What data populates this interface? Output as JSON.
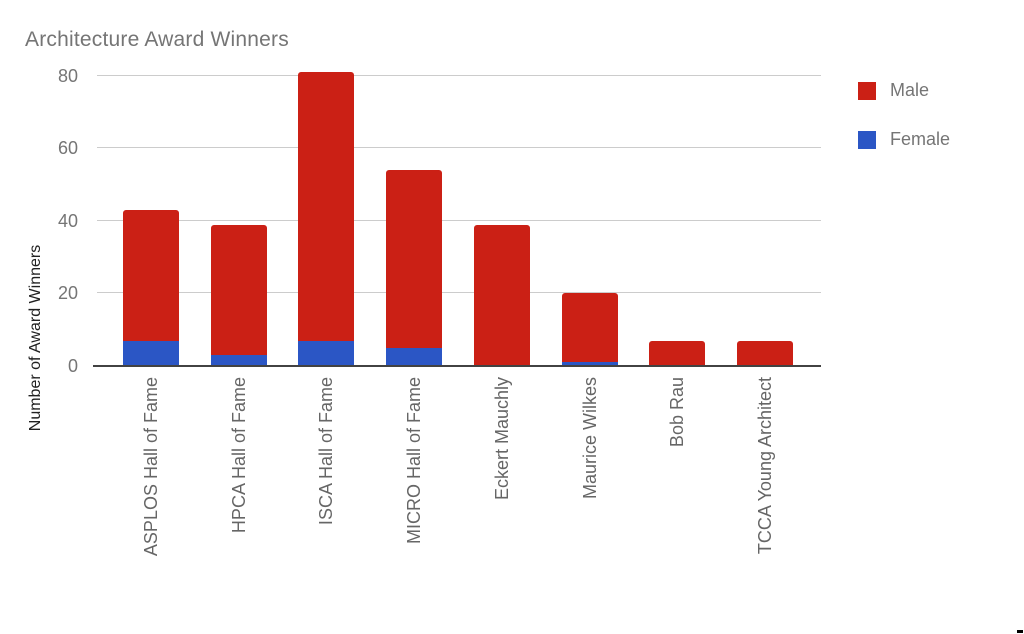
{
  "title": "Architecture Award Winners",
  "y_axis_title": "Number of Award Winners",
  "chart_data": {
    "type": "bar",
    "stacked": true,
    "title": "Architecture Award Winners",
    "xlabel": "",
    "ylabel": "Number of Award Winners",
    "categories": [
      "ASPLOS Hall of Fame",
      "HPCA Hall of Fame",
      "ISCA Hall of Fame",
      "MICRO Hall of Fame",
      "Eckert Mauchly",
      "Maurice Wilkes",
      "Bob Rau",
      "TCCA Young Architect"
    ],
    "series": [
      {
        "name": "Male",
        "color": "#cb2015",
        "values": [
          36,
          36,
          74,
          49,
          39,
          19,
          7,
          7
        ]
      },
      {
        "name": "Female",
        "color": "#2b56c5",
        "values": [
          7,
          3,
          7,
          5,
          0,
          1,
          0,
          0
        ]
      }
    ],
    "stack_order": [
      "Female",
      "Male"
    ],
    "totals": [
      43,
      39,
      81,
      54,
      39,
      20,
      7,
      7
    ],
    "yticks": [
      "0",
      "20",
      "40",
      "60",
      "80"
    ],
    "ylim": [
      0,
      85
    ],
    "grid": true,
    "legend_position": "right"
  },
  "colors": {
    "grid": "#cccccc",
    "baseline": "#424242",
    "title_text": "#757575",
    "tick_text": "#757575",
    "x_label_text": "#666666",
    "y_title_text": "#212121",
    "legend_text": "#757575"
  }
}
